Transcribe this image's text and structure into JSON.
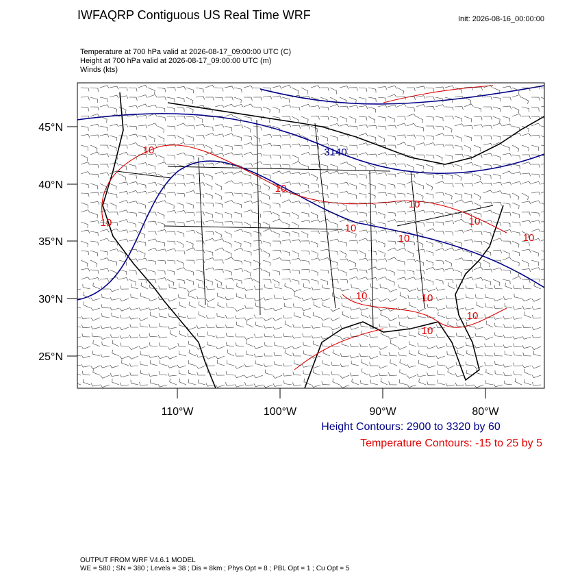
{
  "header": {
    "title": "IWFAQRP Contiguous US Real Time WRF",
    "init": "Init: 2026-08-16_00:00:00"
  },
  "fields": [
    "Temperature at 700 hPa valid at 2026-08-17_09:00:00 UTC   (C)",
    "Height at 700 hPa valid at 2026-08-17_09:00:00 UTC   (m)",
    "Winds   (kts)"
  ],
  "map": {
    "lat_labels": [
      "45°N",
      "40°N",
      "35°N",
      "30°N",
      "25°N"
    ],
    "lon_labels": [
      "110°W",
      "100°W",
      "90°W",
      "80°W"
    ],
    "height_contour_labels": [
      "3140"
    ],
    "temperature_contour_labels": [
      "10",
      "10",
      "10",
      "10",
      "10",
      "10",
      "10",
      "10",
      "10",
      "10",
      "10",
      "10"
    ]
  },
  "legend": {
    "height": "Height Contours: 2900 to 3320 by 60",
    "temperature": "Temperature Contours: -15 to 25 by 5"
  },
  "footer": {
    "model": "OUTPUT FROM WRF V4.6.1 MODEL",
    "settings": "WE = 580 ; SN = 380 ; Levels = 38 ; Dis = 8km ; Phys Opt = 8 ; PBL Opt = 1 ; Cu Opt = 5"
  }
}
